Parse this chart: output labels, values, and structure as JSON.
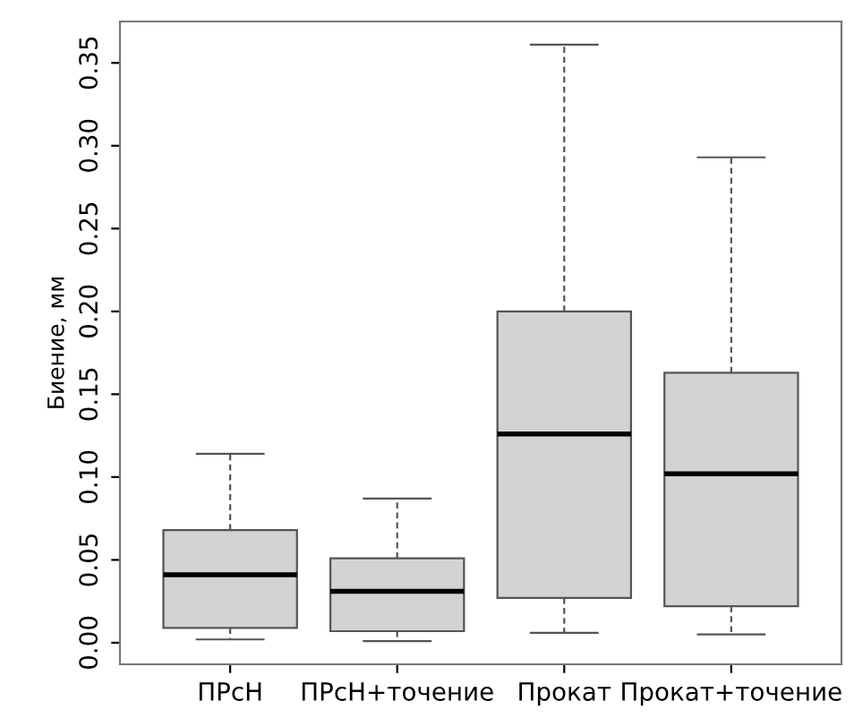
{
  "chart_data": {
    "type": "box",
    "ylabel": "Биение, мм",
    "categories": [
      "ПРсН",
      "ПРсН+точение",
      "Прокат",
      "Прокат+точение"
    ],
    "boxes": [
      {
        "low": 0.002,
        "q1": 0.009,
        "median": 0.041,
        "q3": 0.068,
        "high": 0.114
      },
      {
        "low": 0.001,
        "q1": 0.007,
        "median": 0.031,
        "q3": 0.051,
        "high": 0.087
      },
      {
        "low": 0.006,
        "q1": 0.027,
        "median": 0.126,
        "q3": 0.2,
        "high": 0.361
      },
      {
        "low": 0.005,
        "q1": 0.022,
        "median": 0.102,
        "q3": 0.163,
        "high": 0.293
      }
    ],
    "color": "#d3d3d3",
    "ylim": [
      -0.013,
      0.375
    ],
    "yticks": [
      {
        "value": 0,
        "label": "0.00"
      },
      {
        "value": 0.05,
        "label": "0.05"
      },
      {
        "value": 0.1,
        "label": "0.10"
      },
      {
        "value": 0.15,
        "label": "0.15"
      },
      {
        "value": 0.2,
        "label": "0.20"
      },
      {
        "value": 0.25,
        "label": "0.25"
      },
      {
        "value": 0.3,
        "label": "0.30"
      },
      {
        "value": 0.35,
        "label": "0.35"
      }
    ],
    "grid": false,
    "legend": false
  }
}
